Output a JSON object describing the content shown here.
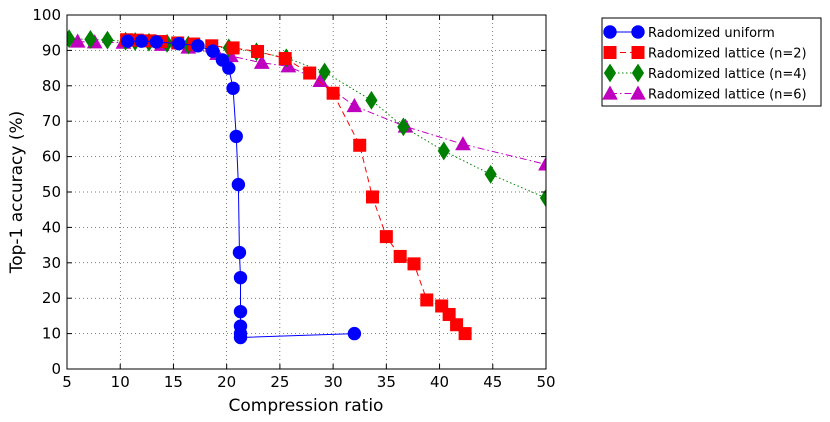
{
  "chart_data": {
    "type": "line",
    "title": "",
    "xlabel": "Compression ratio",
    "ylabel": "Top-1 accuracy (%)",
    "xlim": [
      5,
      50
    ],
    "ylim": [
      0,
      100
    ],
    "xticks": [
      5,
      10,
      15,
      20,
      25,
      30,
      35,
      40,
      45,
      50
    ],
    "yticks": [
      0,
      10,
      20,
      30,
      40,
      50,
      60,
      70,
      80,
      90,
      100
    ],
    "grid": true,
    "legend_position": "outside-top-right",
    "series": [
      {
        "name": "Radomized uniform",
        "color": "#0000ff",
        "marker": "circle",
        "line_style": "solid",
        "points": [
          [
            10.7,
            92.6
          ],
          [
            12.0,
            92.6
          ],
          [
            13.4,
            92.4
          ],
          [
            15.5,
            91.9
          ],
          [
            17.3,
            91.3
          ],
          [
            18.7,
            89.8
          ],
          [
            19.6,
            87.3
          ],
          [
            20.2,
            85.0
          ],
          [
            20.6,
            79.3
          ],
          [
            20.9,
            65.7
          ],
          [
            21.1,
            52.1
          ],
          [
            21.2,
            32.9
          ],
          [
            21.3,
            25.8
          ],
          [
            21.3,
            16.2
          ],
          [
            21.3,
            12.1
          ],
          [
            21.3,
            10.0
          ],
          [
            21.3,
            8.9
          ],
          [
            32.0,
            10.0
          ]
        ]
      },
      {
        "name": "Radomized lattice (n=2)",
        "color": "#ff0000",
        "marker": "square",
        "line_style": "dashed",
        "points": [
          [
            10.6,
            93.0
          ],
          [
            11.6,
            92.9
          ],
          [
            12.8,
            92.7
          ],
          [
            13.8,
            92.5
          ],
          [
            15.4,
            92.1
          ],
          [
            16.9,
            91.8
          ],
          [
            18.6,
            91.3
          ],
          [
            20.6,
            90.7
          ],
          [
            22.9,
            89.7
          ],
          [
            25.5,
            87.7
          ],
          [
            27.8,
            83.6
          ],
          [
            30.0,
            77.9
          ],
          [
            32.5,
            63.2
          ],
          [
            33.7,
            48.6
          ],
          [
            35.0,
            37.4
          ],
          [
            36.3,
            31.8
          ],
          [
            37.6,
            29.7
          ],
          [
            38.8,
            19.5
          ],
          [
            40.2,
            17.8
          ],
          [
            40.9,
            15.4
          ],
          [
            41.6,
            12.5
          ],
          [
            42.4,
            10.0
          ]
        ]
      },
      {
        "name": "Radomized lattice (n=4)",
        "color": "#008000",
        "marker": "diamond",
        "line_style": "dotted",
        "points": [
          [
            5.2,
            93.3
          ],
          [
            7.2,
            93.1
          ],
          [
            8.8,
            92.9
          ],
          [
            10.5,
            92.6
          ],
          [
            11.4,
            92.5
          ],
          [
            12.7,
            92.3
          ],
          [
            14.4,
            92.0
          ],
          [
            16.4,
            91.5
          ],
          [
            20.2,
            90.7
          ],
          [
            22.8,
            89.6
          ],
          [
            25.6,
            87.9
          ],
          [
            29.2,
            83.9
          ],
          [
            33.6,
            75.9
          ],
          [
            36.6,
            68.4
          ],
          [
            40.4,
            61.6
          ],
          [
            44.8,
            55.0
          ],
          [
            50.0,
            48.3
          ]
        ]
      },
      {
        "name": "Radomized lattice (n=6)",
        "color": "#bf00bf",
        "marker": "triangle",
        "line_style": "dashdot",
        "points": [
          [
            6.0,
            92.5
          ],
          [
            7.6,
            92.3
          ],
          [
            10.3,
            92.2
          ],
          [
            13.9,
            91.6
          ],
          [
            16.4,
            90.8
          ],
          [
            19.1,
            89.0
          ],
          [
            20.4,
            88.4
          ],
          [
            23.3,
            86.5
          ],
          [
            25.8,
            85.5
          ],
          [
            28.8,
            81.4
          ],
          [
            32.0,
            74.3
          ],
          [
            36.8,
            68.5
          ],
          [
            42.2,
            63.5
          ],
          [
            50.0,
            57.8
          ]
        ]
      }
    ]
  }
}
